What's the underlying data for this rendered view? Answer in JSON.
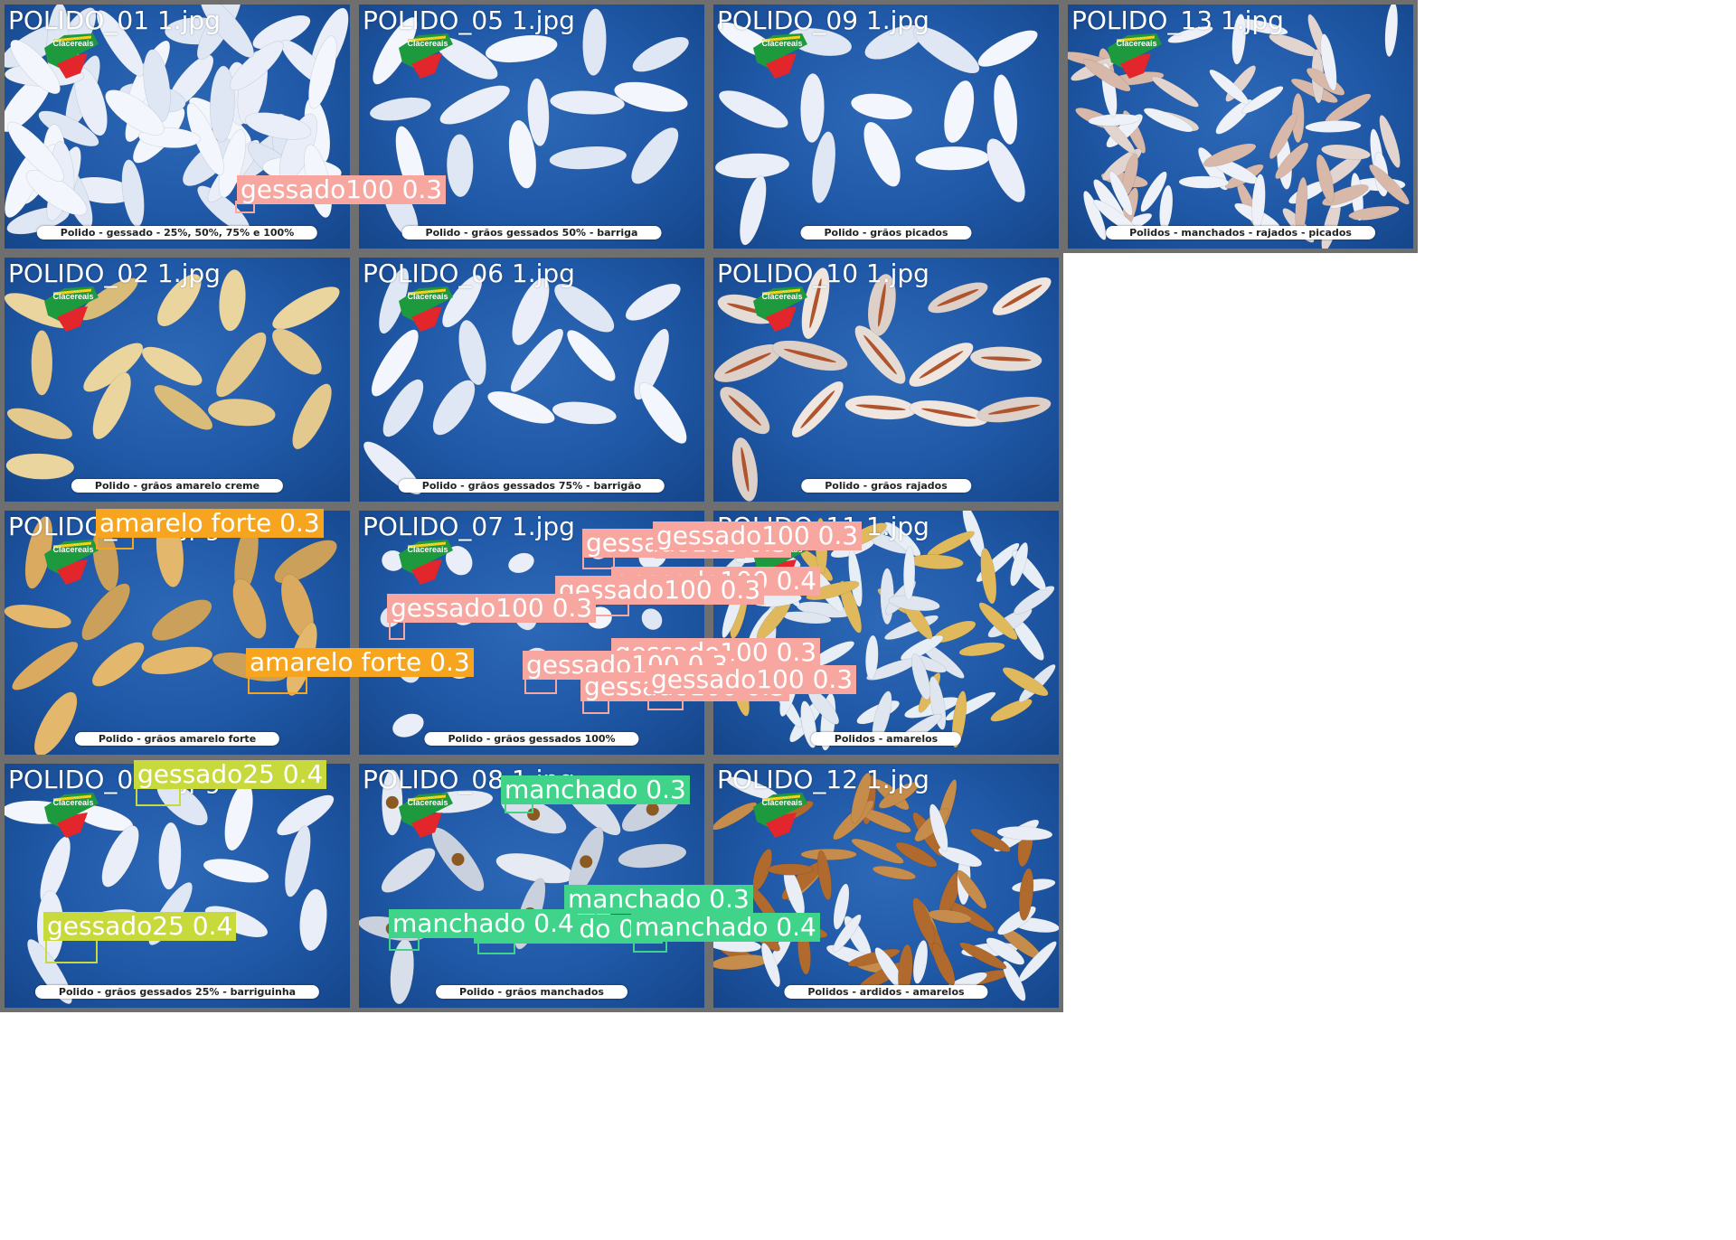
{
  "colors": {
    "gessado100": "#f7a6a0",
    "amarelo_forte": "#f7a51f",
    "gessado25": "#c8d93c",
    "manchado": "#3fd48a"
  },
  "tiles": [
    {
      "id": "t01",
      "name": "POLIDO_01 1.jpg",
      "caption": "Polido - gessado - 25%, 50%, 75% e 100%",
      "logo": "Clacereais",
      "grain": "white",
      "scene": "mixed"
    },
    {
      "id": "t05",
      "name": "POLIDO_05 1.jpg",
      "caption": "Polido - grãos gessados 50% - barriga",
      "logo": "Clacereais",
      "grain": "white",
      "scene": "sparse"
    },
    {
      "id": "t09",
      "name": "POLIDO_09 1.jpg",
      "caption": "Polido - grãos picados",
      "logo": "Clacereais",
      "grain": "white",
      "scene": "sparse"
    },
    {
      "id": "t13",
      "name": "POLIDO_13 1.jpg",
      "caption": "Polidos - manchados - rajados - picados",
      "logo": "Clacereais",
      "grain": "mixed",
      "scene": "dense"
    },
    {
      "id": "t02",
      "name": "POLIDO_02 1.jpg",
      "caption": "Polido - grãos amarelo creme",
      "logo": "Clacereais",
      "grain": "cream",
      "scene": "sparse"
    },
    {
      "id": "t06",
      "name": "POLIDO_06 1.jpg",
      "caption": "Polido - grãos gessados 75% - barrigão",
      "logo": "Clacereais",
      "grain": "white",
      "scene": "sparse"
    },
    {
      "id": "t10",
      "name": "POLIDO_10 1.jpg",
      "caption": "Polido - grãos rajados",
      "logo": "Clacereais",
      "grain": "striped",
      "scene": "sparse"
    },
    {
      "id": "t03",
      "name": "POLIDO_03 1.jpg",
      "caption": "Polido - grãos amarelo forte",
      "logo": "Clacereais",
      "grain": "yellow",
      "scene": "sparse"
    },
    {
      "id": "t07",
      "name": "POLIDO_07 1.jpg",
      "caption": "Polido - grãos gessados 100%",
      "logo": "Clacereais",
      "grain": "white",
      "scene": "broken"
    },
    {
      "id": "t11",
      "name": "POLIDO_11 1.jpg",
      "caption": "Polidos - amarelos",
      "logo": "Clacereais",
      "grain": "pale",
      "scene": "dense"
    },
    {
      "id": "t04",
      "name": "POLIDO_04 1.jpg",
      "caption": "Polido - grãos gessados 25% - barriguinha",
      "logo": "Clacereais",
      "grain": "white",
      "scene": "sparse"
    },
    {
      "id": "t08",
      "name": "POLIDO_08 1.jpg",
      "caption": "Polido - grãos manchados",
      "logo": "Clacereais",
      "grain": "stained",
      "scene": "sparse"
    },
    {
      "id": "t12",
      "name": "POLIDO_12 1.jpg",
      "caption": "Polidos - ardidos - amarelos",
      "logo": "Clacereais",
      "grain": "brown",
      "scene": "dense"
    }
  ],
  "detections": [
    {
      "tile": "t01",
      "cls": "gessado100",
      "text": "gessado100 0.3"
    },
    {
      "tile": "t03",
      "cls": "amarelo_forte",
      "text": "amarelo forte 0.3"
    },
    {
      "tile": "t03",
      "cls": "amarelo_forte",
      "text": "amarelo forte 0.3"
    },
    {
      "tile": "t07",
      "cls": "gessado100",
      "text": "gessado100 0.3"
    },
    {
      "tile": "t07",
      "cls": "gessado100",
      "text": "gessado100 0.3"
    },
    {
      "tile": "t07",
      "cls": "gessado100",
      "text": "gessado100 0.4"
    },
    {
      "tile": "t07",
      "cls": "gessado100",
      "text": "gessado100 0.3"
    },
    {
      "tile": "t07",
      "cls": "gessado100",
      "text": "gessado100 0.3"
    },
    {
      "tile": "t07",
      "cls": "gessado100",
      "text": "gessado100 0.3"
    },
    {
      "tile": "t07",
      "cls": "gessado100",
      "text": "gessado100 0.3"
    },
    {
      "tile": "t07",
      "cls": "gessado100",
      "text": "gessado100 0.3"
    },
    {
      "tile": "t07",
      "cls": "gessado100",
      "text": "gessado100 0.3"
    },
    {
      "tile": "t04",
      "cls": "gessado25",
      "text": "gessado25 0.4"
    },
    {
      "tile": "t04",
      "cls": "gessado25",
      "text": "gessado25 0.4"
    },
    {
      "tile": "t08",
      "cls": "manchado",
      "text": "manchado 0.3"
    },
    {
      "tile": "t08",
      "cls": "manchado",
      "text": "manchado 0.3"
    },
    {
      "tile": "t08",
      "cls": "manchado",
      "text": "manchado 0.5"
    },
    {
      "tile": "t08",
      "cls": "manchado",
      "text": "manchado 0.4"
    },
    {
      "tile": "t08",
      "cls": "manchado",
      "text": "manchado 0.4"
    }
  ]
}
